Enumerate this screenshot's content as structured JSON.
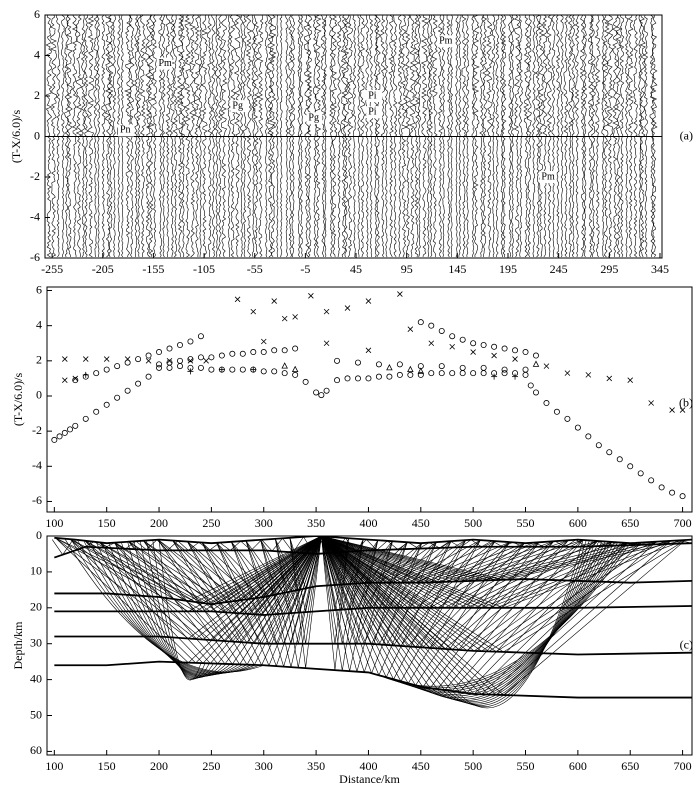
{
  "chart_data": [
    {
      "type": "seismic-section",
      "label": "(a)",
      "ylabel": "(T-X/6.0)/s",
      "xlim": [
        -262,
        347
      ],
      "ylim": [
        -6,
        6
      ],
      "xticks": [
        -255,
        -205,
        -155,
        -105,
        -55,
        -5,
        45,
        95,
        145,
        195,
        245,
        295,
        345
      ],
      "yticks": [
        -6,
        -4,
        -2,
        0,
        2,
        4,
        6
      ],
      "annotations": [
        {
          "text": "Pm",
          "x": -150,
          "y": 3.6
        },
        {
          "text": "Pn",
          "x": -188,
          "y": 0.3
        },
        {
          "text": "Pg",
          "x": -77,
          "y": 1.5
        },
        {
          "text": "Pg",
          "x": -2,
          "y": 0.9
        },
        {
          "text": "Pi",
          "x": 57,
          "y": 2.0
        },
        {
          "text": "Pi",
          "x": 57,
          "y": 1.2
        },
        {
          "text": "Pm",
          "x": 127,
          "y": 4.7
        },
        {
          "text": "Pm",
          "x": 228,
          "y": -2.0
        }
      ]
    },
    {
      "type": "scatter",
      "label": "(b)",
      "ylabel": "(T-X/6.0)/s",
      "xlim": [
        93,
        709
      ],
      "ylim": [
        -6.6,
        6.2
      ],
      "xticks": [
        100,
        150,
        200,
        250,
        300,
        350,
        400,
        450,
        500,
        550,
        600,
        650,
        700
      ],
      "yticks": [
        -6,
        -4,
        -2,
        0,
        2,
        4,
        6
      ],
      "series": [
        {
          "marker": "o",
          "color": "#000000",
          "x": [
            100,
            105,
            110,
            115,
            120,
            130,
            140,
            150,
            160,
            170,
            180,
            190,
            200,
            210,
            220,
            230,
            240,
            250,
            260,
            270,
            280,
            290,
            300,
            310,
            320,
            330,
            340,
            350,
            355,
            360,
            370,
            380,
            390,
            400,
            410,
            420,
            430,
            440,
            450,
            460,
            470,
            480,
            490,
            500,
            510,
            520,
            530,
            540,
            550,
            555,
            560,
            570,
            580,
            590,
            600,
            610,
            620,
            630,
            640,
            650,
            660,
            670,
            680,
            690,
            700
          ],
          "y": [
            -2.5,
            -2.3,
            -2.1,
            -1.9,
            -1.7,
            -1.3,
            -0.9,
            -0.5,
            -0.1,
            0.3,
            0.7,
            1.1,
            1.6,
            1.6,
            1.7,
            1.6,
            1.6,
            1.5,
            1.5,
            1.5,
            1.5,
            1.5,
            1.4,
            1.4,
            1.3,
            1.2,
            0.8,
            0.2,
            0.05,
            0.3,
            0.9,
            1.0,
            1.0,
            1.0,
            1.1,
            1.1,
            1.2,
            1.2,
            1.2,
            1.3,
            1.3,
            1.3,
            1.3,
            1.3,
            1.3,
            1.3,
            1.3,
            1.3,
            1.2,
            0.6,
            0.2,
            -0.4,
            -0.9,
            -1.3,
            -1.8,
            -2.3,
            -2.8,
            -3.2,
            -3.6,
            -4.0,
            -4.4,
            -4.8,
            -5.2,
            -5.5,
            -5.7
          ]
        },
        {
          "marker": "o",
          "color": "#000000",
          "x": [
            120,
            130,
            140,
            150,
            160,
            170,
            180,
            190,
            200,
            210,
            220,
            230,
            240,
            450,
            460,
            470,
            480,
            490,
            500,
            510,
            520,
            530,
            540,
            550,
            560
          ],
          "y": [
            0.9,
            1.1,
            1.3,
            1.5,
            1.7,
            1.9,
            2.1,
            2.3,
            2.5,
            2.7,
            2.9,
            3.1,
            3.4,
            4.2,
            4.0,
            3.7,
            3.4,
            3.2,
            3.0,
            2.9,
            2.8,
            2.7,
            2.6,
            2.5,
            2.3
          ]
        },
        {
          "marker": "o",
          "color": "#000000",
          "x": [
            200,
            210,
            220,
            230,
            240,
            250,
            260,
            270,
            280,
            290,
            300,
            310,
            320,
            330,
            370,
            390,
            410,
            430,
            450,
            470,
            490,
            510,
            530,
            550
          ],
          "y": [
            1.8,
            1.9,
            2.0,
            2.1,
            2.2,
            2.2,
            2.3,
            2.4,
            2.4,
            2.5,
            2.5,
            2.6,
            2.6,
            2.7,
            2.0,
            1.9,
            1.8,
            1.8,
            1.7,
            1.7,
            1.6,
            1.6,
            1.5,
            1.5
          ]
        },
        {
          "marker": "x",
          "color": "#000000",
          "x": [
            110,
            130,
            150,
            170,
            190,
            210,
            230,
            245,
            275,
            290,
            310,
            330,
            345,
            360,
            380,
            400,
            430,
            440,
            460,
            480,
            500,
            520,
            540,
            570,
            590,
            610,
            630,
            650,
            670,
            690,
            700,
            110,
            120,
            300,
            320,
            400,
            360
          ],
          "y": [
            2.1,
            2.1,
            2.1,
            2.1,
            2.0,
            2.0,
            2.0,
            2.0,
            5.5,
            4.8,
            5.4,
            4.5,
            5.7,
            3.0,
            5.0,
            5.4,
            5.8,
            3.8,
            3.0,
            2.8,
            2.5,
            2.3,
            2.1,
            1.7,
            1.3,
            1.2,
            1.0,
            0.9,
            -0.4,
            -0.8,
            -0.8,
            0.9,
            1.0,
            3.1,
            4.4,
            2.6,
            4.8
          ]
        },
        {
          "marker": "+",
          "color": "#000000",
          "x": [
            130,
            230,
            260,
            290,
            520,
            540
          ],
          "y": [
            1.2,
            1.4,
            1.5,
            1.5,
            1.1,
            1.1
          ]
        },
        {
          "marker": "^",
          "color": "#000000",
          "x": [
            320,
            330,
            420,
            440,
            450,
            560
          ],
          "y": [
            1.7,
            1.5,
            1.6,
            1.5,
            1.4,
            1.8
          ]
        }
      ]
    },
    {
      "type": "ray-diagram",
      "label": "(c)",
      "xlabel": "Distance/km",
      "ylabel": "Depth/km",
      "xlim": [
        93,
        709
      ],
      "ylim": [
        0,
        61
      ],
      "invert_y": true,
      "xticks": [
        100,
        150,
        200,
        250,
        300,
        350,
        400,
        450,
        500,
        550,
        600,
        650,
        700
      ],
      "yticks": [
        0,
        10,
        20,
        30,
        40,
        50,
        60
      ],
      "interfaces": [
        {
          "x": [
            100,
            120,
            150,
            200,
            250,
            300,
            350,
            400,
            450,
            500,
            550,
            600,
            650,
            709
          ],
          "y": [
            0.5,
            1,
            2,
            1,
            2,
            1,
            0,
            1,
            2,
            1,
            2,
            1,
            2,
            1
          ]
        },
        {
          "x": [
            100,
            130,
            200,
            300,
            350,
            400,
            500,
            600,
            709
          ],
          "y": [
            6,
            3,
            4,
            4,
            5,
            4,
            3,
            3,
            2
          ]
        },
        {
          "x": [
            100,
            150,
            200,
            250,
            300,
            350,
            400,
            450,
            550,
            650,
            709
          ],
          "y": [
            16,
            16,
            17,
            19,
            17,
            14,
            13,
            13,
            12,
            13,
            12.5
          ]
        },
        {
          "x": [
            100,
            200,
            250,
            300,
            350,
            400,
            500,
            600,
            709
          ],
          "y": [
            21,
            21,
            21,
            22,
            21,
            20,
            20,
            20,
            19.5
          ]
        },
        {
          "x": [
            100,
            200,
            300,
            400,
            500,
            600,
            709
          ],
          "y": [
            28,
            28,
            30,
            30,
            32,
            33,
            32.5
          ]
        },
        {
          "x": [
            100,
            150,
            200,
            300,
            350,
            400,
            450,
            500,
            600,
            709
          ],
          "y": [
            36,
            36,
            35,
            36,
            37,
            38,
            42,
            44,
            45,
            45
          ]
        }
      ]
    }
  ]
}
